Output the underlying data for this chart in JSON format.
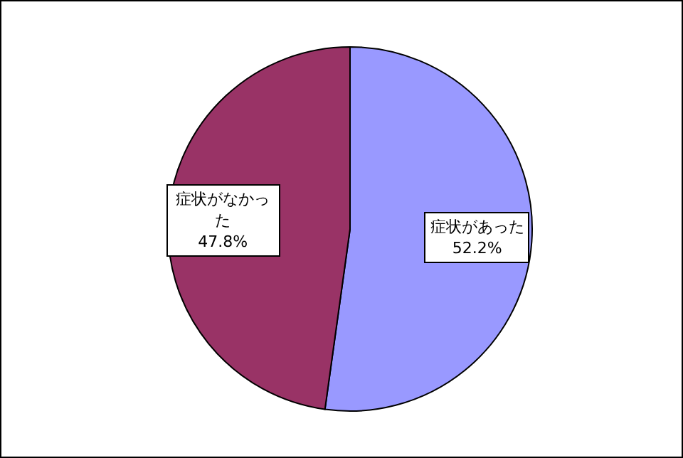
{
  "chart_data": {
    "type": "pie",
    "categories": [
      "症状があった",
      "症状がなかった"
    ],
    "values": [
      52.2,
      47.8
    ],
    "colors": [
      "#9999ff",
      "#993366"
    ],
    "value_labels": [
      "52.2%",
      "47.8%"
    ]
  }
}
